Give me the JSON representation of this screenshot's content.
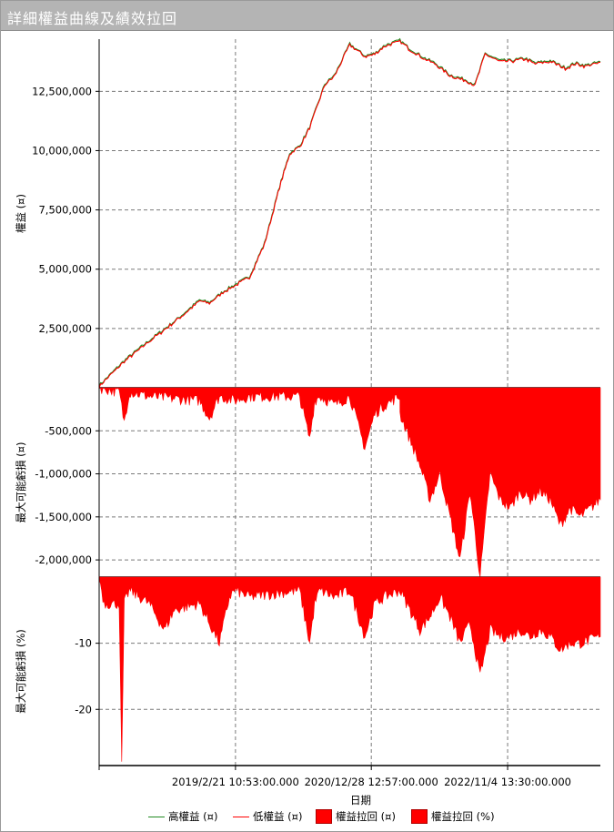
{
  "window": {
    "title": "詳細權益曲線及績效拉回"
  },
  "chart_data": [
    {
      "type": "line",
      "panel": "equity",
      "ylabel": "權益 (¤)",
      "ylim": [
        0,
        14700000
      ],
      "yticks": [
        2500000,
        5000000,
        7500000,
        10000000,
        12500000
      ],
      "ytick_labels": [
        "2,500,000",
        "5,000,000",
        "7,500,000",
        "10,000,000",
        "12,500,000"
      ],
      "grid": true,
      "colors": {
        "high": "#228b22",
        "low": "#ff0000"
      },
      "series": [
        {
          "name": "高權益 (¤)",
          "x": [
            0.0,
            0.05,
            0.1,
            0.15,
            0.2,
            0.22,
            0.25,
            0.3,
            0.33,
            0.36,
            0.38,
            0.4,
            0.42,
            0.45,
            0.47,
            0.5,
            0.53,
            0.55,
            0.57,
            0.6,
            0.62,
            0.65,
            0.67,
            0.7,
            0.73,
            0.75,
            0.77,
            0.8,
            0.82,
            0.85,
            0.87,
            0.9,
            0.93,
            0.95,
            0.97,
            1.0
          ],
          "y": [
            100000,
            1150000,
            2000000,
            2800000,
            3700000,
            3600000,
            4100000,
            4700000,
            6100000,
            8500000,
            9900000,
            10200000,
            11000000,
            12800000,
            13200000,
            14500000,
            14000000,
            14100000,
            14450000,
            14650000,
            14300000,
            13900000,
            13700000,
            13200000,
            13000000,
            12800000,
            14100000,
            13800000,
            13800000,
            13900000,
            13700000,
            13800000,
            13500000,
            13700000,
            13600000,
            13750000
          ]
        },
        {
          "name": "低權益 (¤)",
          "x": [
            0.0,
            0.05,
            0.1,
            0.15,
            0.2,
            0.22,
            0.25,
            0.3,
            0.33,
            0.36,
            0.38,
            0.4,
            0.42,
            0.45,
            0.47,
            0.5,
            0.53,
            0.55,
            0.57,
            0.6,
            0.62,
            0.65,
            0.67,
            0.7,
            0.73,
            0.75,
            0.77,
            0.8,
            0.82,
            0.85,
            0.87,
            0.9,
            0.93,
            0.95,
            0.97,
            1.0
          ],
          "y": [
            100000,
            1150000,
            2000000,
            2800000,
            3700000,
            3600000,
            4100000,
            4700000,
            6100000,
            8500000,
            9900000,
            10200000,
            11000000,
            12800000,
            13200000,
            14500000,
            14000000,
            14100000,
            14450000,
            14650000,
            14300000,
            13900000,
            13700000,
            13200000,
            13000000,
            12800000,
            14100000,
            13800000,
            13800000,
            13900000,
            13700000,
            13800000,
            13500000,
            13700000,
            13600000,
            13750000
          ]
        }
      ]
    },
    {
      "type": "area",
      "panel": "drawdown-amount",
      "ylabel": "最大可能虧損 (¤)",
      "ylim": [
        -2200000,
        0
      ],
      "yticks": [
        -500000,
        -1000000,
        -1500000,
        -2000000
      ],
      "ytick_labels": [
        "-500,000",
        "-1,000,000",
        "-1,500,000",
        "-2,000,000"
      ],
      "grid": true,
      "color": "#ff0000",
      "series": [
        {
          "name": "權益拉回 (¤)",
          "x": [
            0.0,
            0.04,
            0.05,
            0.06,
            0.1,
            0.2,
            0.22,
            0.24,
            0.27,
            0.3,
            0.4,
            0.42,
            0.43,
            0.44,
            0.47,
            0.5,
            0.53,
            0.55,
            0.57,
            0.6,
            0.6001,
            0.62,
            0.64,
            0.66,
            0.68,
            0.7,
            0.72,
            0.74,
            0.76,
            0.78,
            0.8,
            0.82,
            0.84,
            0.86,
            0.88,
            0.9,
            0.92,
            0.94,
            0.96,
            1.0
          ],
          "y": [
            0,
            -50000,
            -400000,
            -50000,
            -100000,
            -150000,
            -350000,
            -100000,
            -150000,
            -100000,
            -100000,
            -600000,
            -150000,
            -100000,
            -200000,
            -100000,
            -700000,
            -300000,
            -200000,
            -100000,
            -300000,
            -600000,
            -900000,
            -1300000,
            -1000000,
            -1500000,
            -2000000,
            -1200000,
            -2200000,
            -1000000,
            -1300000,
            -1400000,
            -1200000,
            -1300000,
            -1200000,
            -1300000,
            -1600000,
            -1400000,
            -1500000,
            -1300000
          ]
        }
      ]
    },
    {
      "type": "area",
      "panel": "drawdown-percent",
      "ylabel": "最大可能虧損 (%)",
      "ylim": [
        -28.5,
        0
      ],
      "yticks": [
        -10,
        -20
      ],
      "ytick_labels": [
        "-10",
        "-20"
      ],
      "grid": true,
      "color": "#ff0000",
      "series": [
        {
          "name": "權益拉回 (%)",
          "x": [
            0.0,
            0.01,
            0.04,
            0.045,
            0.05,
            0.06,
            0.1,
            0.13,
            0.15,
            0.2,
            0.22,
            0.24,
            0.26,
            0.27,
            0.3,
            0.4,
            0.42,
            0.43,
            0.44,
            0.47,
            0.5,
            0.53,
            0.55,
            0.57,
            0.6,
            0.62,
            0.64,
            0.66,
            0.68,
            0.7,
            0.72,
            0.74,
            0.76,
            0.78,
            0.8,
            0.82,
            0.84,
            0.86,
            0.88,
            0.9,
            0.92,
            0.94,
            0.96,
            1.0
          ],
          "y": [
            0,
            -4,
            -4,
            -28.5,
            -4,
            -2,
            -4,
            -8,
            -5,
            -4,
            -7,
            -10,
            -3,
            -2,
            -3,
            -2,
            -10,
            -4,
            -2,
            -3,
            -2,
            -9,
            -4,
            -3,
            -2,
            -5,
            -8,
            -6,
            -3,
            -6,
            -10,
            -7,
            -15,
            -8,
            -9,
            -9,
            -8,
            -9,
            -8,
            -9,
            -11,
            -10,
            -10,
            -9
          ]
        }
      ]
    }
  ],
  "xaxis": {
    "label": "日期",
    "tick_positions": [
      0.272,
      0.543,
      0.815
    ],
    "ticks": [
      "2019/2/21 10:53:00.000",
      "2020/12/28 12:57:00.000",
      "2022/11/4 13:30:00.000"
    ]
  },
  "legend": [
    {
      "label": "高權益 (¤)",
      "kind": "line",
      "color": "#228b22"
    },
    {
      "label": "低權益 (¤)",
      "kind": "line",
      "color": "#ff0000"
    },
    {
      "label": "權益拉回 (¤)",
      "kind": "box",
      "color": "#ff0000"
    },
    {
      "label": "權益拉回 (%)",
      "kind": "box",
      "color": "#ff0000"
    }
  ]
}
